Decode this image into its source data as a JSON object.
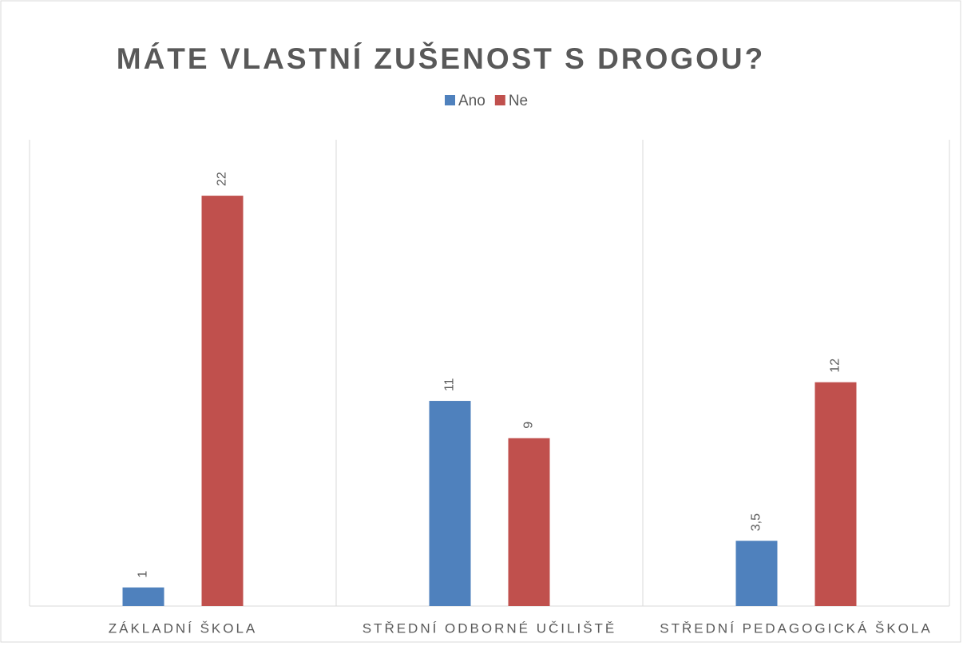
{
  "chart_data": {
    "type": "bar",
    "title": "MÁTE VLASTNÍ ZUŠENOST S DROGOU?",
    "categories": [
      "ZÁKLADNÍ ŠKOLA",
      "STŘEDNÍ ODBORNÉ UČILIŠTĚ",
      "STŘEDNÍ PEDAGOGICKÁ ŠKOLA"
    ],
    "series": [
      {
        "name": "Ano",
        "color": "#4f81bd",
        "values": [
          1,
          11,
          3.5
        ],
        "value_labels": [
          "1",
          "11",
          "3,5"
        ]
      },
      {
        "name": "Ne",
        "color": "#c0504d",
        "values": [
          22,
          9,
          12
        ]
      }
    ],
    "ylim": [
      0,
      25
    ],
    "legend": "top"
  }
}
